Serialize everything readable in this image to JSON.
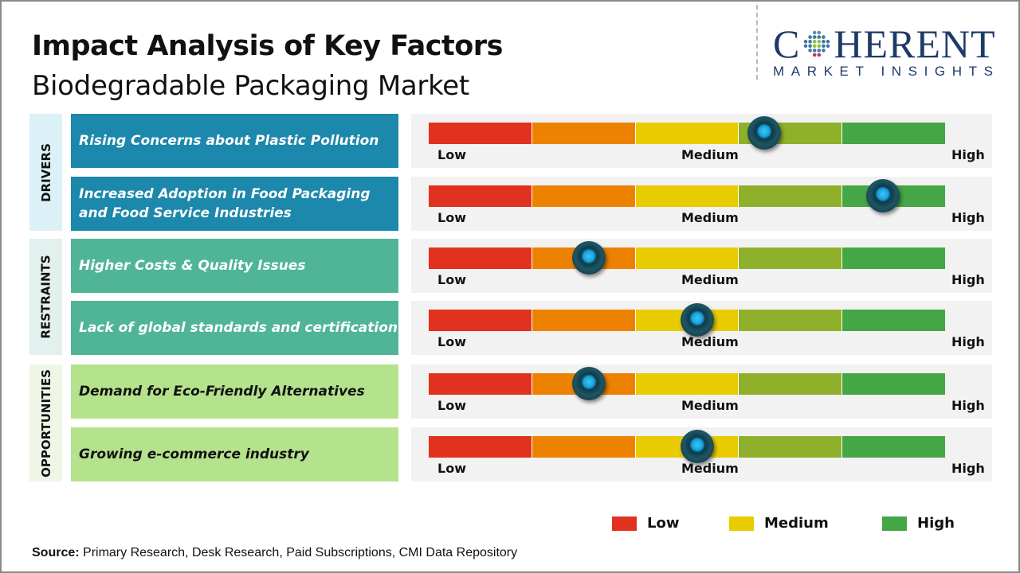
{
  "title": "Impact Analysis of Key Factors",
  "subtitle": "Biodegradable Packaging Market",
  "logo": {
    "main_left": "C",
    "main_right": "HERENT",
    "sub": "MARKET INSIGHTS"
  },
  "scale": {
    "low": "Low",
    "medium": "Medium",
    "high": "High"
  },
  "segment_colors": [
    "#e0321e",
    "#ec8200",
    "#e8cb00",
    "#8fb02a",
    "#44a645"
  ],
  "categories": [
    {
      "label": "DRIVERS",
      "bg": "#dcf0f8",
      "box_color": "#1c88ab",
      "text_color": "#ffffff",
      "factors": [
        {
          "text": "Rising Concerns about Plastic Pollution",
          "impact": 0.65
        },
        {
          "text": "Increased Adoption in Food Packaging and Food Service Industries",
          "impact": 0.88
        }
      ]
    },
    {
      "label": "RESTRAINTS",
      "bg": "#e2f0ee",
      "box_color": "#50b596",
      "text_color": "#ffffff",
      "factors": [
        {
          "text": "Higher Costs & Quality Issues",
          "impact": 0.31
        },
        {
          "text": "Lack of global standards and certification",
          "impact": 0.52
        }
      ]
    },
    {
      "label": "OPPORTUNITIES",
      "bg": "#eef6e7",
      "box_color": "#b5e28c",
      "text_color": "#111111",
      "factors": [
        {
          "text": "Demand for Eco-Friendly Alternatives",
          "impact": 0.31
        },
        {
          "text": "Growing e-commerce industry",
          "impact": 0.52
        }
      ]
    }
  ],
  "legend": [
    {
      "label": "Low",
      "color": "#e0321e"
    },
    {
      "label": "Medium",
      "color": "#e8cb00"
    },
    {
      "label": "High",
      "color": "#44a645"
    }
  ],
  "source": {
    "label": "Source:",
    "text": " Primary Research, Desk Research, Paid Subscriptions, CMI Data Repository"
  }
}
